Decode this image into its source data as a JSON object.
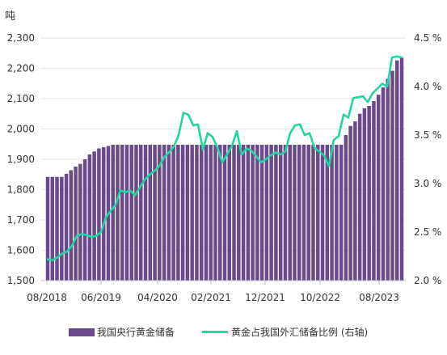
{
  "chart_data": {
    "type": "bar+line",
    "y_left_unit": "吨",
    "x_tick_labels": [
      "08/2018",
      "06/2019",
      "04/2020",
      "02/2021",
      "12/2021",
      "10/2022",
      "08/2023"
    ],
    "y_left_ticks": [
      "1,500",
      "1,600",
      "1,700",
      "1,800",
      "1,900",
      "2,000",
      "2,100",
      "2,200",
      "2,300"
    ],
    "y_right_ticks": [
      "2.0 %",
      "2.5 %",
      "3.0 %",
      "3.5 %",
      "4.0 %",
      "4.5 %"
    ],
    "ylim_left": [
      1500,
      2300
    ],
    "ylim_right": [
      2.0,
      4.5
    ],
    "series": [
      {
        "name": "我国央行黄金储备",
        "type": "bar",
        "axis": "left",
        "color": "#6a4a8c",
        "values": [
          1842,
          1842,
          1842,
          1842,
          1852,
          1864,
          1876,
          1885,
          1900,
          1916,
          1926,
          1936,
          1940,
          1944,
          1948,
          1948,
          1948,
          1948,
          1948,
          1948,
          1948,
          1948,
          1948,
          1948,
          1948,
          1948,
          1948,
          1948,
          1948,
          1948,
          1948,
          1948,
          1948,
          1948,
          1948,
          1948,
          1948,
          1948,
          1948,
          1948,
          1948,
          1948,
          1948,
          1948,
          1948,
          1948,
          1948,
          1948,
          1948,
          1948,
          1948,
          1948,
          1948,
          1948,
          1948,
          1948,
          1948,
          1948,
          1948,
          1948,
          1948,
          1948,
          1948,
          1948,
          1980,
          2010,
          2025,
          2050,
          2068,
          2076,
          2092,
          2113,
          2137,
          2165,
          2192,
          2226,
          2235
        ]
      },
      {
        "name": "黄金占我国外汇储备比例 (右轴)",
        "type": "line",
        "axis": "right",
        "color": "#22d6a4",
        "values": [
          2.22,
          2.21,
          2.24,
          2.28,
          2.3,
          2.36,
          2.46,
          2.48,
          2.47,
          2.45,
          2.46,
          2.5,
          2.65,
          2.72,
          2.78,
          2.93,
          2.91,
          2.93,
          2.88,
          2.96,
          3.04,
          3.09,
          3.13,
          3.18,
          3.27,
          3.32,
          3.38,
          3.5,
          3.73,
          3.71,
          3.6,
          3.61,
          3.35,
          3.52,
          3.48,
          3.37,
          3.22,
          3.3,
          3.39,
          3.54,
          3.3,
          3.36,
          3.34,
          3.28,
          3.22,
          3.25,
          3.29,
          3.32,
          3.3,
          3.33,
          3.52,
          3.6,
          3.61,
          3.5,
          3.52,
          3.37,
          3.33,
          3.29,
          3.18,
          3.45,
          3.49,
          3.71,
          3.68,
          3.88,
          3.89,
          3.9,
          3.84,
          3.93,
          3.98,
          4.03,
          4.0,
          4.3,
          4.31,
          4.3
        ]
      }
    ]
  },
  "legend": {
    "bar_label": "我国央行黄金储备",
    "line_label": "黄金占我国外汇储备比例 (右轴)"
  }
}
